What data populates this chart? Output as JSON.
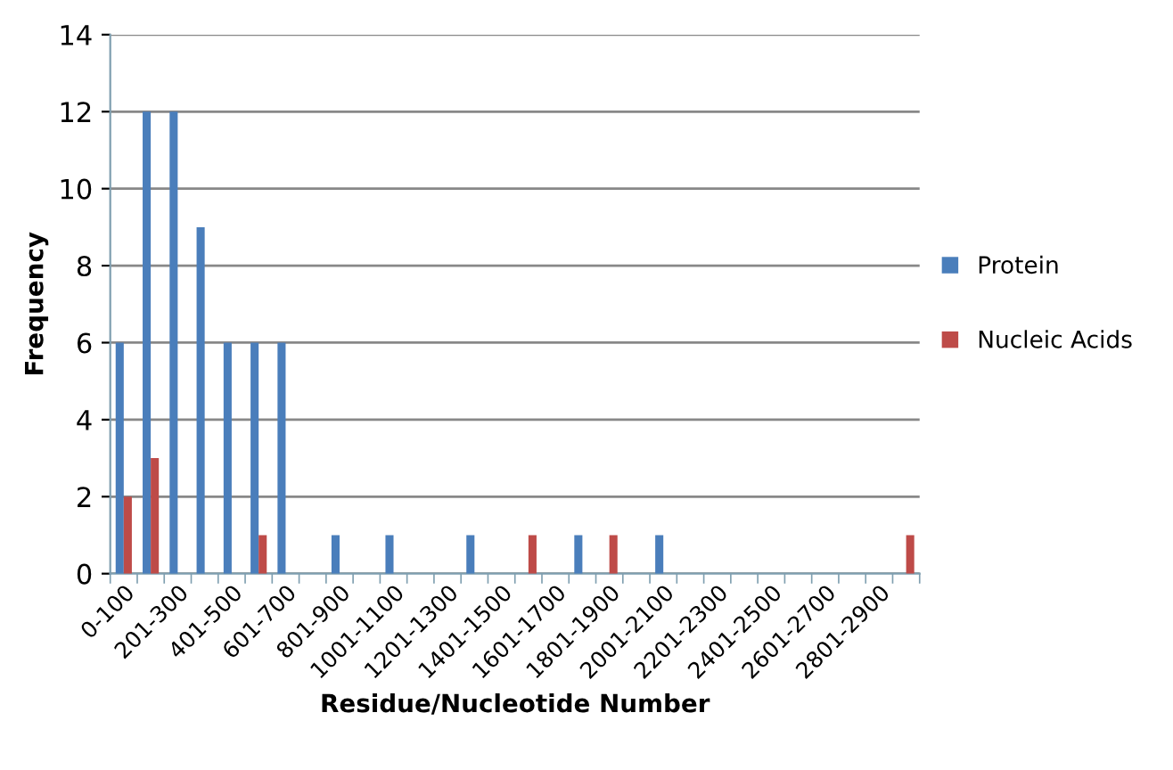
{
  "chart_data": {
    "type": "bar",
    "xlabel": "Residue/Nucleotide Number",
    "ylabel": "Frequency",
    "categories": [
      "0-100",
      null,
      "201-300",
      null,
      "401-500",
      null,
      "601-700",
      null,
      "801-900",
      null,
      "1001-1100",
      null,
      "1201-1300",
      null,
      "1401-1500",
      null,
      "1601-1700",
      null,
      "1801-1900",
      null,
      "2001-2100",
      null,
      "2201-2300",
      null,
      "2401-2500",
      null,
      "2601-2700",
      null,
      "2801-2900",
      null
    ],
    "series": [
      {
        "name": "Protein",
        "color": "#4a7ebb",
        "values": [
          6,
          12,
          12,
          9,
          6,
          6,
          6,
          0,
          1,
          0,
          1,
          0,
          0,
          1,
          0,
          0,
          0,
          1,
          0,
          0,
          1,
          0,
          0,
          0,
          0,
          0,
          0,
          0,
          0,
          0
        ]
      },
      {
        "name": "Nucleic Acids",
        "color": "#be4b48",
        "values": [
          2,
          3,
          0,
          0,
          0,
          1,
          0,
          0,
          0,
          0,
          0,
          0,
          0,
          0,
          0,
          1,
          0,
          0,
          1,
          0,
          0,
          0,
          0,
          0,
          0,
          0,
          0,
          0,
          0,
          1
        ]
      }
    ],
    "ylim": [
      0,
      14
    ],
    "yticks": [
      0,
      2,
      4,
      6,
      8,
      10,
      12,
      14
    ],
    "grid": "y",
    "legend": "right"
  }
}
